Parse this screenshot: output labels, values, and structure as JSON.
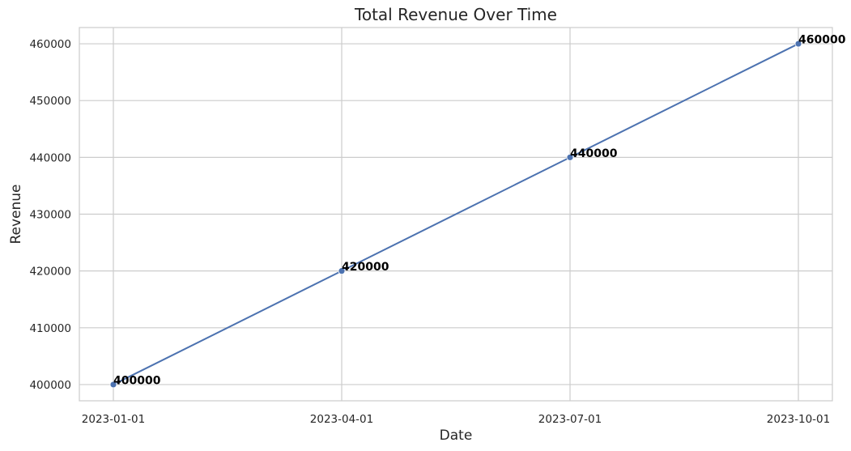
{
  "chart_data": {
    "type": "line",
    "title": "Total Revenue Over Time",
    "xlabel": "Date",
    "ylabel": "Revenue",
    "x": [
      "2023-01-01",
      "2023-04-01",
      "2023-07-01",
      "2023-10-01"
    ],
    "series": [
      {
        "values": [
          400000,
          420000,
          440000,
          460000
        ]
      }
    ],
    "data_labels": [
      "400000",
      "420000",
      "440000",
      "460000"
    ],
    "x_tick_labels": [
      "2023-01-01",
      "2023-04-01",
      "2023-07-01",
      "2023-10-01"
    ],
    "y_ticks": [
      400000,
      410000,
      420000,
      430000,
      440000,
      450000,
      460000
    ],
    "y_tick_labels": [
      "400000",
      "410000",
      "420000",
      "430000",
      "440000",
      "450000",
      "460000"
    ],
    "ylim": [
      397143,
      462857
    ],
    "grid": true,
    "markers": true,
    "line_color": "#4c72b0",
    "grid_color": "#cccccc",
    "label_color": "#000000"
  }
}
